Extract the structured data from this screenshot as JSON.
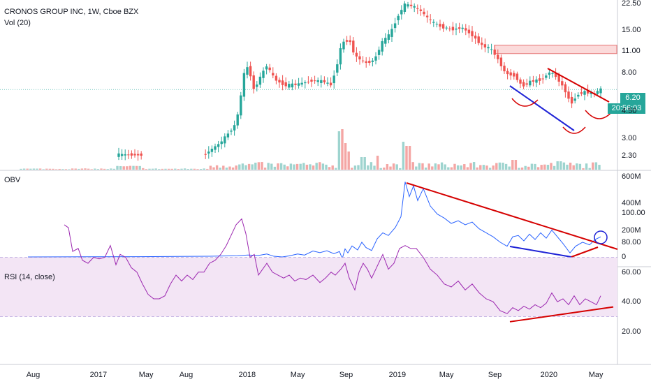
{
  "header": {
    "title": "CRONOS GROUP INC, 1W, Cboe BZX",
    "vol_label": "Vol (20)",
    "obv_label": "OBV",
    "rsi_label": "RSI (14, close)"
  },
  "badges": {
    "last_price": "6.20",
    "countdown": "20:56:03"
  },
  "colors": {
    "up": "#26a69a",
    "down": "#ef5350",
    "obv": "#2962ff",
    "rsi": "#9c27b0",
    "trend_red": "#d50000",
    "trend_blue": "#1e22d6",
    "rsi_band": "#f3e5f5"
  },
  "chart_data": [
    {
      "type": "candlestick",
      "title": "CRONOS GROUP INC, 1W, Cboe BZX",
      "y_scale": "log",
      "price_ticks": [
        "22.50",
        "15.00",
        "11.00",
        "8.00",
        "6.20",
        "4.50",
        "3.00",
        "2.30"
      ],
      "x_ticks": [
        "Aug",
        "2017",
        "May",
        "Aug",
        "2018",
        "May",
        "Sep",
        "2019",
        "May",
        "Sep",
        "2020",
        "May"
      ],
      "last_price": 6.2,
      "resistance_zone": [
        10.6,
        12.0
      ]
    },
    {
      "type": "line",
      "name": "OBV",
      "y_ticks": [
        "600M",
        "400M",
        "200M",
        "0"
      ],
      "approx_range": [
        0,
        600000000
      ]
    },
    {
      "type": "line",
      "name": "RSI (14, close)",
      "y_ticks": [
        "100.00",
        "80.00",
        "60.00",
        "40.00",
        "20.00"
      ],
      "band": [
        30,
        70
      ]
    }
  ]
}
